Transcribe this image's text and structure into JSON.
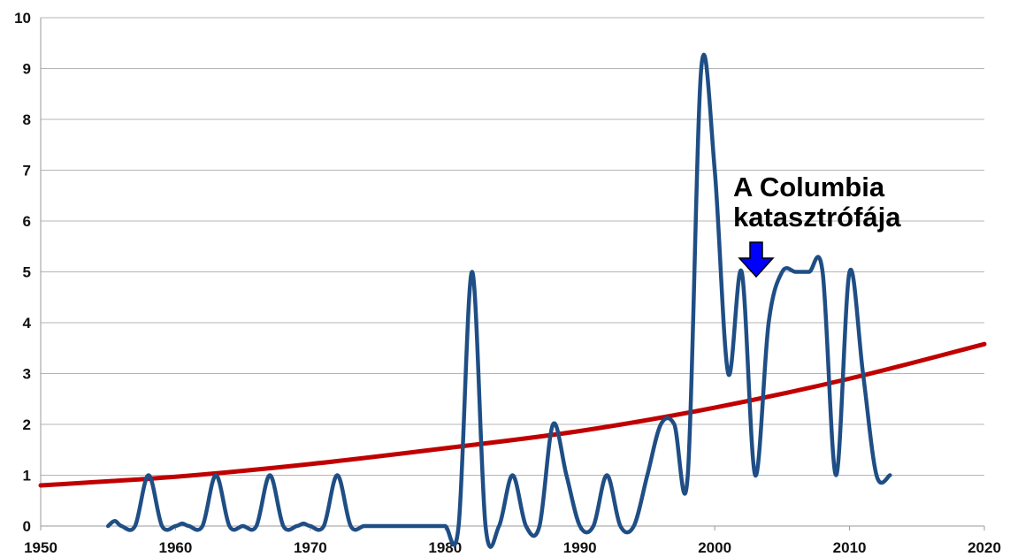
{
  "chart_data": {
    "type": "line",
    "title": "",
    "xlabel": "",
    "ylabel": "",
    "xlim": [
      1950,
      2020
    ],
    "ylim": [
      0,
      10
    ],
    "x_ticks": [
      "1950",
      "1960",
      "1970",
      "1980",
      "1990",
      "2000",
      "2010",
      "2020"
    ],
    "y_ticks": [
      "0",
      "1",
      "2",
      "3",
      "4",
      "5",
      "6",
      "7",
      "8",
      "9",
      "10"
    ],
    "grid": "horizontal",
    "legend": "none",
    "series": [
      {
        "color": "#1f4e85",
        "style": "smooth",
        "points": [
          [
            1955,
            0
          ],
          [
            1955.5,
            0.1
          ],
          [
            1956,
            0
          ],
          [
            1957,
            0
          ],
          [
            1958,
            1
          ],
          [
            1959,
            0
          ],
          [
            1960,
            0
          ],
          [
            1960.5,
            0.05
          ],
          [
            1961,
            0
          ],
          [
            1962,
            0
          ],
          [
            1963,
            1
          ],
          [
            1964,
            0
          ],
          [
            1965,
            0
          ],
          [
            1966,
            0
          ],
          [
            1967,
            1
          ],
          [
            1968,
            0
          ],
          [
            1969,
            0
          ],
          [
            1969.5,
            0.05
          ],
          [
            1970,
            0
          ],
          [
            1971,
            0
          ],
          [
            1972,
            1
          ],
          [
            1973,
            0
          ],
          [
            1974,
            0
          ],
          [
            1975,
            0
          ],
          [
            1976,
            0
          ],
          [
            1977,
            0
          ],
          [
            1978,
            0
          ],
          [
            1979,
            0
          ],
          [
            1980,
            0
          ],
          [
            1981,
            0
          ],
          [
            1982,
            5
          ],
          [
            1983,
            0
          ],
          [
            1984,
            0
          ],
          [
            1985,
            1
          ],
          [
            1986,
            0
          ],
          [
            1987,
            0
          ],
          [
            1988,
            2
          ],
          [
            1989,
            1
          ],
          [
            1990,
            0
          ],
          [
            1991,
            0
          ],
          [
            1992,
            1
          ],
          [
            1993,
            0
          ],
          [
            1994,
            0
          ],
          [
            1995,
            1
          ],
          [
            1996,
            2
          ],
          [
            1997,
            2
          ],
          [
            1998,
            1
          ],
          [
            1999,
            9
          ],
          [
            2000,
            7
          ],
          [
            2001,
            3
          ],
          [
            2002,
            5
          ],
          [
            2003,
            1
          ],
          [
            2004,
            4
          ],
          [
            2005,
            5
          ],
          [
            2006,
            5
          ],
          [
            2007,
            5
          ],
          [
            2008,
            5
          ],
          [
            2009,
            1
          ],
          [
            2010,
            5
          ],
          [
            2011,
            3
          ],
          [
            2012,
            1
          ],
          [
            2013,
            1
          ]
        ]
      },
      {
        "color": "#c00000",
        "style": "trend",
        "points": [
          [
            1950,
            0.8
          ],
          [
            1960,
            0.97
          ],
          [
            1970,
            1.22
          ],
          [
            1980,
            1.53
          ],
          [
            1990,
            1.87
          ],
          [
            2000,
            2.33
          ],
          [
            2010,
            2.9
          ],
          [
            2020,
            3.58
          ]
        ]
      }
    ],
    "annotations": [
      {
        "lines": [
          "A Columbia",
          "katasztrófája"
        ],
        "arrow_color": "#0000ff",
        "points_to": [
          2003,
          5
        ]
      }
    ]
  }
}
